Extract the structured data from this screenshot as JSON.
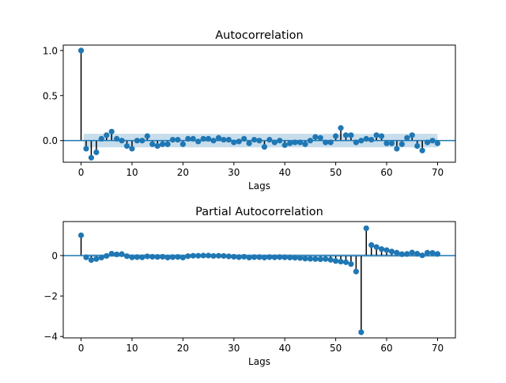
{
  "chart_data": [
    {
      "type": "stem",
      "title": "Autocorrelation",
      "xlabel": "Lags",
      "ylabel": "",
      "xlim": [
        -3.5,
        73.5
      ],
      "ylim": [
        -0.24,
        1.06
      ],
      "xticks": [
        0,
        10,
        20,
        30,
        40,
        50,
        60,
        70
      ],
      "yticks": [
        1.0,
        0.5,
        0.0
      ],
      "ytick_labels": [
        "1.0",
        "0.5",
        "0.0"
      ],
      "grid": false,
      "confidence_band": 0.075,
      "colors": {
        "marker": "#1f77b4",
        "band": "#1f77b4",
        "stem": "#000000"
      },
      "lags": [
        0,
        1,
        2,
        3,
        4,
        5,
        6,
        7,
        8,
        9,
        10,
        11,
        12,
        13,
        14,
        15,
        16,
        17,
        18,
        19,
        20,
        21,
        22,
        23,
        24,
        25,
        26,
        27,
        28,
        29,
        30,
        31,
        32,
        33,
        34,
        35,
        36,
        37,
        38,
        39,
        40,
        41,
        42,
        43,
        44,
        45,
        46,
        47,
        48,
        49,
        50,
        51,
        52,
        53,
        54,
        55,
        56,
        57,
        58,
        59,
        60,
        61,
        62,
        63,
        64,
        65,
        66,
        67,
        68,
        69,
        70
      ],
      "values": [
        1.0,
        -0.09,
        -0.19,
        -0.13,
        0.02,
        0.06,
        0.1,
        0.02,
        0.0,
        -0.06,
        -0.09,
        0.0,
        0.0,
        0.05,
        -0.04,
        -0.06,
        -0.04,
        -0.04,
        0.01,
        0.01,
        -0.04,
        0.02,
        0.02,
        -0.01,
        0.02,
        0.02,
        0.0,
        0.03,
        0.01,
        0.01,
        -0.02,
        -0.01,
        0.02,
        -0.03,
        0.01,
        0.0,
        -0.07,
        0.01,
        -0.02,
        0.0,
        -0.05,
        -0.03,
        -0.02,
        -0.02,
        -0.04,
        0.0,
        0.04,
        0.03,
        -0.02,
        -0.02,
        0.05,
        0.14,
        0.06,
        0.06,
        -0.02,
        0.0,
        0.02,
        0.01,
        0.06,
        0.05,
        -0.03,
        -0.03,
        -0.09,
        -0.04,
        0.03,
        0.06,
        -0.06,
        -0.11,
        -0.02,
        0.0,
        -0.03
      ]
    },
    {
      "type": "stem",
      "title": "Partial Autocorrelation",
      "xlabel": "Lags",
      "ylabel": "",
      "xlim": [
        -3.5,
        73.5
      ],
      "ylim": [
        -4.07,
        1.68
      ],
      "xticks": [
        0,
        10,
        20,
        30,
        40,
        50,
        60,
        70
      ],
      "yticks": [
        0,
        -2,
        -4
      ],
      "ytick_labels": [
        "0",
        "−2",
        "−4"
      ],
      "grid": false,
      "confidence_band": 0.075,
      "colors": {
        "marker": "#1f77b4",
        "band": "#1f77b4",
        "stem": "#000000"
      },
      "lags": [
        0,
        1,
        2,
        3,
        4,
        5,
        6,
        7,
        8,
        9,
        10,
        11,
        12,
        13,
        14,
        15,
        16,
        17,
        18,
        19,
        20,
        21,
        22,
        23,
        24,
        25,
        26,
        27,
        28,
        29,
        30,
        31,
        32,
        33,
        34,
        35,
        36,
        37,
        38,
        39,
        40,
        41,
        42,
        43,
        44,
        45,
        46,
        47,
        48,
        49,
        50,
        51,
        52,
        53,
        54,
        55,
        56,
        57,
        58,
        59,
        60,
        61,
        62,
        63,
        64,
        65,
        66,
        67,
        68,
        69,
        70
      ],
      "values": [
        1.0,
        -0.09,
        -0.22,
        -0.17,
        -0.1,
        -0.02,
        0.09,
        0.06,
        0.07,
        -0.03,
        -0.09,
        -0.08,
        -0.09,
        -0.04,
        -0.06,
        -0.07,
        -0.06,
        -0.1,
        -0.08,
        -0.07,
        -0.1,
        -0.03,
        -0.01,
        -0.01,
        0.0,
        0.0,
        -0.02,
        -0.01,
        -0.02,
        -0.04,
        -0.06,
        -0.08,
        -0.06,
        -0.1,
        -0.08,
        -0.08,
        -0.1,
        -0.08,
        -0.09,
        -0.08,
        -0.09,
        -0.1,
        -0.11,
        -0.12,
        -0.15,
        -0.16,
        -0.17,
        -0.18,
        -0.17,
        -0.21,
        -0.27,
        -0.3,
        -0.33,
        -0.42,
        -0.79,
        -3.79,
        1.35,
        0.52,
        0.42,
        0.32,
        0.27,
        0.2,
        0.14,
        0.07,
        0.08,
        0.15,
        0.09,
        0.01,
        0.14,
        0.13,
        0.08
      ]
    }
  ]
}
